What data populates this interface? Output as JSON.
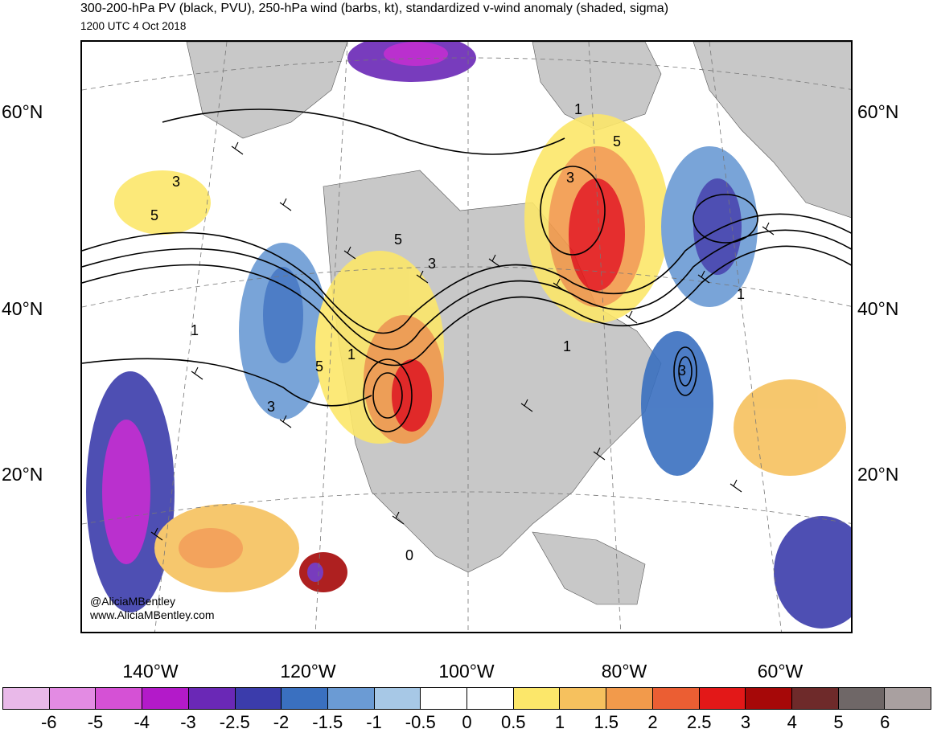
{
  "header": {
    "title": "300-200-hPa PV (black, PVU), 250-hPa wind (barbs, kt), standardized v-wind anomaly (shaded, sigma)",
    "valid_time": "1200 UTC 4 Oct 2018"
  },
  "map": {
    "lat_labels": [
      "60°N",
      "40°N",
      "20°N"
    ],
    "lon_labels": [
      "140°W",
      "120°W",
      "100°W",
      "80°W",
      "60°W"
    ],
    "credit_handle": "@AliciaMBentley",
    "credit_url": "www.AliciaMBentley.com",
    "contour_labels": [
      "5",
      "3",
      "5",
      "3",
      "1",
      "1",
      "5",
      "3",
      "3",
      "1",
      "5",
      "1",
      "1",
      "3",
      "0"
    ]
  },
  "colorbar": {
    "colors": [
      "#e9b9e9",
      "#e38be3",
      "#d551d5",
      "#b31ac9",
      "#6a28b6",
      "#3b3cab",
      "#3a70c0",
      "#6b9bd4",
      "#a7c8e6",
      "#ffffff",
      "#ffffff",
      "#fce76a",
      "#f6c15e",
      "#f29a4b",
      "#eb5e33",
      "#e31818",
      "#a60808",
      "#6e2a2a",
      "#6f6767",
      "#a9a0a0"
    ],
    "labels": [
      "-6",
      "-5",
      "-4",
      "-3",
      "-2.5",
      "-2",
      "-1.5",
      "-1",
      "-0.5",
      "0",
      "0.5",
      "1",
      "1.5",
      "2",
      "2.5",
      "3",
      "4",
      "5",
      "6"
    ]
  }
}
